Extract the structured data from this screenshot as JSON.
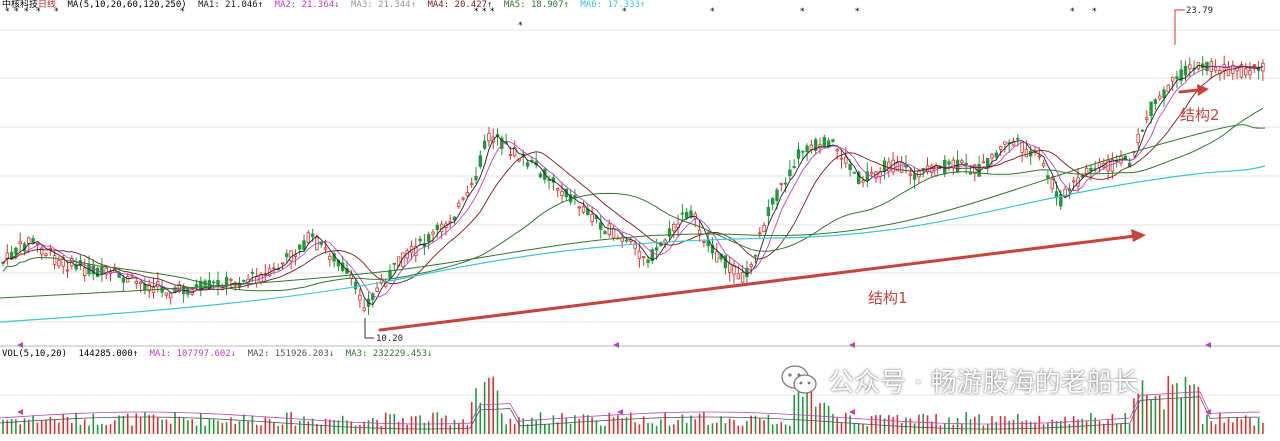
{
  "colors": {
    "bg": "#ffffff",
    "up": "#e03030",
    "down": "#1f9a3a",
    "ma1": "#222222",
    "ma2": "#c040c0",
    "ma3": "#7a1a1a",
    "ma4": "#2c7a2c",
    "ma5": "#38c8d8",
    "grid": "#e6e6e6",
    "annotation": "#c8433a",
    "star": "#000000"
  },
  "price_header": {
    "stock": "中核科技",
    "period": "日线",
    "ma_params": "MA(5,10,20,60,120,250)",
    "ma1": "MA1: 21.046↑",
    "ma2": "MA2: 21.364↓",
    "ma3": "MA3: 21.344↑",
    "ma4": "MA4: 20.427↑",
    "ma5": "MA5: 18.907↑",
    "ma6": "MA6: 17.333↑"
  },
  "volume_header": {
    "params": "VOL(5,10,20)",
    "vol": "144285.000↑",
    "ma1": "MA1: 107797.602↓",
    "ma2": "MA2: 151926.203↓",
    "ma3": "MA3: 232229.453↓"
  },
  "price_labels": {
    "high": "23.79",
    "low": "10.20"
  },
  "annotations": {
    "structure1": "结构1",
    "structure2": "结构2"
  },
  "watermark": {
    "text": "公众号 · 畅游股海的老船长",
    "icon": "wechat-icon"
  },
  "chart_data": {
    "type": "candlestick",
    "title": "中核科技 日线",
    "indicators": [
      "MA5",
      "MA10",
      "MA20",
      "MA60",
      "MA120",
      "MA250"
    ],
    "price_high": 23.79,
    "price_low": 10.2,
    "annotations": [
      "结构1",
      "结构2"
    ]
  }
}
